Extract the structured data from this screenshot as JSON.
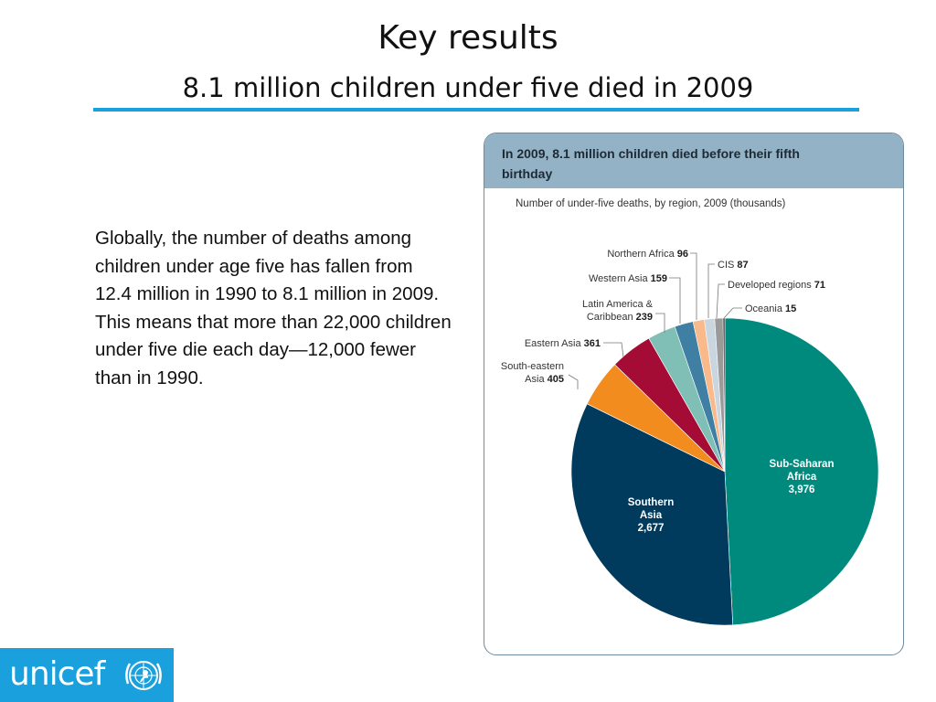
{
  "slide": {
    "title": "Key results",
    "subtitle": "8.1 million children under five died in 2009",
    "body": "Globally, the number of deaths among children under age five has fallen from 12.4 million in 1990 to 8.1 million in 2009. This means that more than 22,000 children under five die each day—12,000 fewer than in 1990."
  },
  "figure": {
    "header": "In 2009, 8.1 million children died before their fifth birthday",
    "caption": "Number of under-five deaths, by region, 2009 (thousands)"
  },
  "chart_data": {
    "type": "pie",
    "categories": [
      "Sub-Saharan Africa",
      "Southern Asia",
      "South-eastern Asia",
      "Eastern Asia",
      "Latin America & Caribbean",
      "Western Asia",
      "Northern Africa",
      "CIS",
      "Developed regions",
      "Oceania"
    ],
    "values": [
      3976,
      2677,
      405,
      361,
      239,
      159,
      96,
      87,
      71,
      15
    ],
    "value_labels": [
      "3,976",
      "2,677",
      "405",
      "361",
      "239",
      "159",
      "96",
      "87",
      "71",
      "15"
    ],
    "colors": [
      "#008a7e",
      "#003a5c",
      "#f28c1e",
      "#a40b35",
      "#7fbfb5",
      "#3f7fa3",
      "#f9b98a",
      "#c9d6df",
      "#9a9a9a",
      "#2a2a2a"
    ],
    "legend": "none",
    "title": "",
    "xlabel": "",
    "ylabel": ""
  },
  "logo": {
    "word": "unicef",
    "emblem": "un-emblem-icon"
  }
}
